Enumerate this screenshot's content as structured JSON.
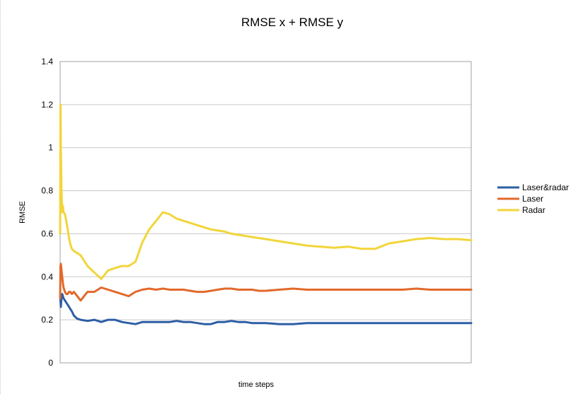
{
  "chart_data": {
    "type": "line",
    "title": "RMSE x + RMSE y",
    "xlabel": "time steps",
    "ylabel": "RMSE",
    "ylim": [
      0,
      1.4
    ],
    "yticks": [
      "0",
      "0.2",
      "0.4",
      "0.6",
      "0.8",
      "1",
      "1.2",
      "1.4"
    ],
    "grid": true,
    "legend": "right",
    "x": [
      0,
      0.5,
      1,
      2,
      3,
      4,
      5,
      7,
      9,
      11,
      13,
      15,
      17,
      20,
      25,
      30,
      40,
      50,
      60,
      70,
      80,
      90,
      100,
      110,
      120,
      130,
      140,
      150,
      160,
      170,
      180,
      190,
      200,
      210,
      220,
      230,
      240,
      250,
      260,
      270,
      280,
      290,
      300,
      320,
      340,
      360,
      380,
      400,
      420,
      440,
      460,
      480,
      500,
      520,
      540,
      560,
      580,
      600
    ],
    "series": [
      {
        "name": "Laser&radar",
        "color": "#2d5ea5",
        "values": [
          0.31,
          0.29,
          0.26,
          0.3,
          0.32,
          0.31,
          0.3,
          0.29,
          0.28,
          0.27,
          0.26,
          0.25,
          0.24,
          0.22,
          0.205,
          0.2,
          0.195,
          0.2,
          0.19,
          0.2,
          0.2,
          0.19,
          0.185,
          0.18,
          0.19,
          0.19,
          0.19,
          0.19,
          0.19,
          0.195,
          0.19,
          0.19,
          0.185,
          0.18,
          0.18,
          0.19,
          0.19,
          0.195,
          0.19,
          0.19,
          0.185,
          0.185,
          0.185,
          0.18,
          0.18,
          0.185,
          0.185,
          0.185,
          0.185,
          0.185,
          0.185,
          0.185,
          0.185,
          0.185,
          0.185,
          0.185,
          0.185,
          0.185
        ]
      },
      {
        "name": "Laser",
        "color": "#e2692b",
        "values": [
          0.3,
          0.45,
          0.46,
          0.43,
          0.4,
          0.37,
          0.35,
          0.33,
          0.32,
          0.32,
          0.33,
          0.33,
          0.32,
          0.33,
          0.31,
          0.29,
          0.33,
          0.33,
          0.35,
          0.34,
          0.33,
          0.32,
          0.31,
          0.33,
          0.34,
          0.345,
          0.34,
          0.345,
          0.34,
          0.34,
          0.34,
          0.335,
          0.33,
          0.33,
          0.335,
          0.34,
          0.345,
          0.345,
          0.34,
          0.34,
          0.34,
          0.335,
          0.335,
          0.34,
          0.345,
          0.34,
          0.34,
          0.34,
          0.34,
          0.34,
          0.34,
          0.34,
          0.34,
          0.345,
          0.34,
          0.34,
          0.34,
          0.34
        ]
      },
      {
        "name": "Radar",
        "color": "#f2d53a",
        "values": [
          0.6,
          1.2,
          1.0,
          0.8,
          0.7,
          0.73,
          0.7,
          0.69,
          0.66,
          0.62,
          0.58,
          0.55,
          0.53,
          0.52,
          0.51,
          0.5,
          0.45,
          0.42,
          0.39,
          0.43,
          0.44,
          0.45,
          0.45,
          0.47,
          0.56,
          0.62,
          0.66,
          0.7,
          0.69,
          0.67,
          0.66,
          0.65,
          0.64,
          0.63,
          0.62,
          0.615,
          0.61,
          0.6,
          0.595,
          0.59,
          0.585,
          0.58,
          0.575,
          0.565,
          0.555,
          0.545,
          0.54,
          0.535,
          0.54,
          0.53,
          0.53,
          0.555,
          0.565,
          0.575,
          0.58,
          0.575,
          0.575,
          0.57
        ]
      }
    ]
  }
}
